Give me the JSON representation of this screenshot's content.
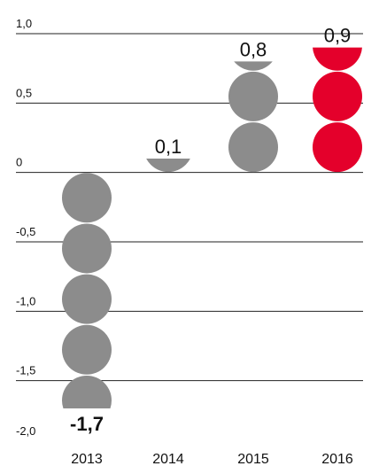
{
  "chart_data": {
    "type": "bar",
    "style": "stacked-circles",
    "categories": [
      "2013",
      "2014",
      "2015",
      "2016"
    ],
    "values": [
      -1.7,
      0.1,
      0.8,
      0.9
    ],
    "value_labels": [
      "-1,7",
      "0,1",
      "0,8",
      "0,9"
    ],
    "ylim": [
      -2.0,
      1.0
    ],
    "yticks": [
      1.0,
      0.5,
      0.0,
      -0.5,
      -1.0,
      -1.5,
      -2.0
    ],
    "ytick_labels": [
      "1,0",
      "0,5",
      "0",
      "-0,5",
      "-1,0",
      "-1,5",
      "-2,0"
    ],
    "grid": true,
    "title": "",
    "xlabel": "",
    "ylabel": "",
    "colors": {
      "default": "#8c8c8c",
      "highlight": "#e4002b",
      "grid": "#222222",
      "text": "#111111"
    },
    "highlight_category": "2016"
  }
}
